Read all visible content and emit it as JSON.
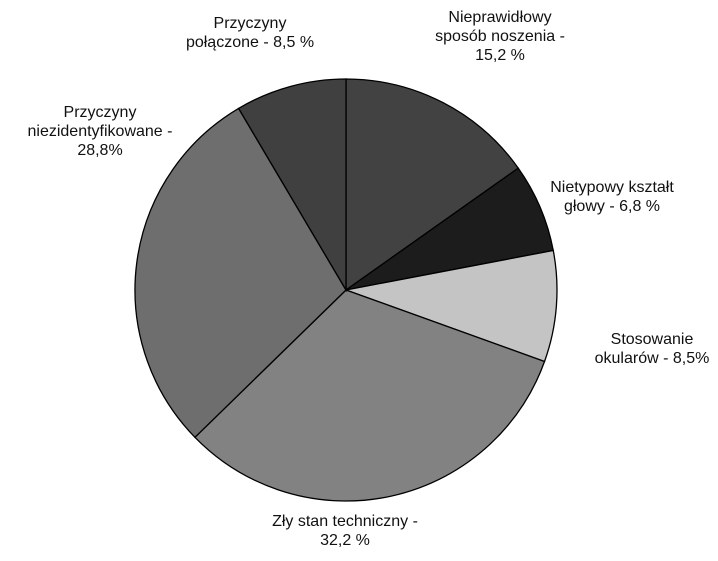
{
  "chart_data": {
    "type": "pie",
    "categories": [
      "Nieprawidłowy sposób noszenia",
      "Nietypowy kształt głowy",
      "Stosowanie okularów",
      "Zły stan techniczny",
      "Przyczyny niezidentyfikowane",
      "Przyczyny połączone"
    ],
    "values": [
      15.2,
      6.8,
      8.5,
      32.2,
      28.8,
      8.5
    ],
    "value_labels": [
      "- 15,2 %",
      "- 6,8 %",
      "- 8,5%",
      "- 32,2 %",
      "- 28,8%",
      "- 8,5 %"
    ],
    "colors": [
      "#424242",
      "#1c1c1c",
      "#c4c4c4",
      "#828282",
      "#6e6e6e",
      "#404040"
    ]
  }
}
